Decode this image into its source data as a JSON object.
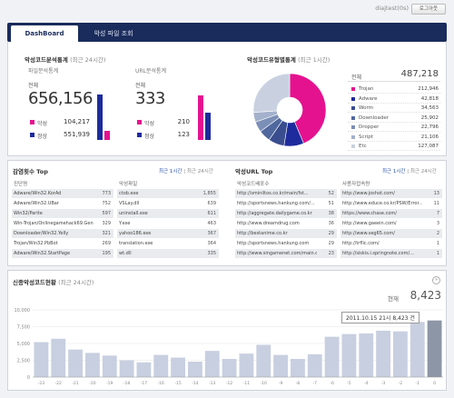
{
  "header": {
    "user": "diajtest(0s)",
    "logout_label": "로그아웃"
  },
  "tabs": [
    {
      "label": "DashBoard"
    },
    {
      "label": "악성 파일 조회"
    }
  ],
  "stats": {
    "title": "악성코드분석통계",
    "subtitle": "(최근 24시간)",
    "file": {
      "title": "파일분석통계",
      "total_label": "전체",
      "total": "656,156",
      "malicious_label": "악성",
      "malicious": "104,217",
      "normal_label": "정상",
      "normal": "551,939"
    },
    "url": {
      "title": "URL분석통계",
      "total_label": "전체",
      "total": "333",
      "malicious_label": "악성",
      "malicious": "210",
      "normal_label": "정상",
      "normal": "123"
    }
  },
  "types": {
    "title": "악성코드유형별통계",
    "subtitle": "(최근 1시간)",
    "total_label": "전체",
    "total": "487,218",
    "items": [
      {
        "name": "Trojan",
        "value": "212,946",
        "color": "#e5128f"
      },
      {
        "name": "Adware",
        "value": "42,818",
        "color": "#1d2b9c"
      },
      {
        "name": "Worm",
        "value": "34,563",
        "color": "#3a4d8f"
      },
      {
        "name": "Downloader",
        "value": "25,902",
        "color": "#50689e"
      },
      {
        "name": "Dropper",
        "value": "22,796",
        "color": "#7b8fb7"
      },
      {
        "name": "Script",
        "value": "21,106",
        "color": "#a4b1cc"
      },
      {
        "name": "Etc",
        "value": "127,087",
        "color": "#c9d1e1"
      }
    ]
  },
  "infections": {
    "title": "감염횟수 Top",
    "link_recent": "최근 1시간",
    "link_day": "최근 24시간",
    "col1": "진단명",
    "col2": "악성파일",
    "names": [
      {
        "name": "Adware/Win32.KorAd",
        "count": "773"
      },
      {
        "name": "Adware/Win32.UBar",
        "count": "752"
      },
      {
        "name": "Win32/Parite",
        "count": "597"
      },
      {
        "name": "Win-Trojan/Onlinegamehack69.Gen",
        "count": "329"
      },
      {
        "name": "Downloader/Win32.Yelly",
        "count": "321"
      },
      {
        "name": "Trojan/Win32.PbBot",
        "count": "269"
      },
      {
        "name": "Adware/Win32.StartPage",
        "count": "195"
      }
    ],
    "files": [
      {
        "name": "ctob.exe",
        "count": "1,855"
      },
      {
        "name": "VSLay.dll",
        "count": "639"
      },
      {
        "name": "uninstall.exe",
        "count": "611"
      },
      {
        "name": "Y.exe",
        "count": "463"
      },
      {
        "name": "yahoo186.exe",
        "count": "367"
      },
      {
        "name": "translation.exe",
        "count": "364"
      },
      {
        "name": "wt.dll",
        "count": "335"
      }
    ]
  },
  "urls": {
    "title": "악성URL Top",
    "link_recent": "최근 1시간",
    "link_day": "최근 24시간",
    "col1": "악성코드배포수",
    "col2": "사용자접속량",
    "dist": [
      {
        "name": "http://sminiltos.co.kr/main/fst...",
        "count": "52"
      },
      {
        "name": "http://sportsnews.hankung.com/...",
        "count": "51"
      },
      {
        "name": "http://aggregate.dailygame.co.kr",
        "count": "38"
      },
      {
        "name": "http://www.dreamdrug.com",
        "count": "36"
      },
      {
        "name": "http://bestanime.co.kr",
        "count": "29"
      },
      {
        "name": "http://sportsnews.hankung.com",
        "count": "29"
      },
      {
        "name": "http://www.singamenet.com/main.og...",
        "count": "23"
      }
    ],
    "access": [
      {
        "name": "http://www.joshot.com/",
        "count": "13"
      },
      {
        "name": "http://www.educe.co.kr/PSW/Error...",
        "count": "11"
      },
      {
        "name": "https://www.chase.com/",
        "count": "7"
      },
      {
        "name": "http://www.gaeein.com/",
        "count": "3"
      },
      {
        "name": "http://www.seg65.com/",
        "count": "2"
      },
      {
        "name": "http://trflic.com/",
        "count": "1"
      },
      {
        "name": "http://siskis.i.springnote.com/...",
        "count": "1"
      }
    ]
  },
  "trend": {
    "title": "신종악성코드현황",
    "subtitle": "(최근 24시간)",
    "current_label": "현재",
    "current_value": "8,423",
    "tooltip": "2011.10.15 21시 8,423 건"
  },
  "chart_data": {
    "type": "bar",
    "categories": [
      "-23",
      "-22",
      "-21",
      "-20",
      "-19",
      "-18",
      "-17",
      "-16",
      "-15",
      "-14",
      "-13",
      "-12",
      "-11",
      "-10",
      "-9",
      "-8",
      "-7",
      "-6",
      "-5",
      "-4",
      "-3",
      "-2",
      "-1",
      "0"
    ],
    "values": [
      5200,
      5700,
      4100,
      3600,
      3200,
      2500,
      2200,
      3300,
      2900,
      2300,
      3900,
      2700,
      3500,
      4800,
      3300,
      2700,
      3400,
      6000,
      6400,
      6500,
      6900,
      6800,
      8200,
      8423
    ],
    "highlight_index": 23,
    "ylim": [
      0,
      10000
    ],
    "yticks": [
      "10,000",
      "7,500",
      "5,000",
      "2,500",
      "0"
    ],
    "bar_color": "#c8cfe0",
    "highlight_color": "#8d96a6"
  }
}
